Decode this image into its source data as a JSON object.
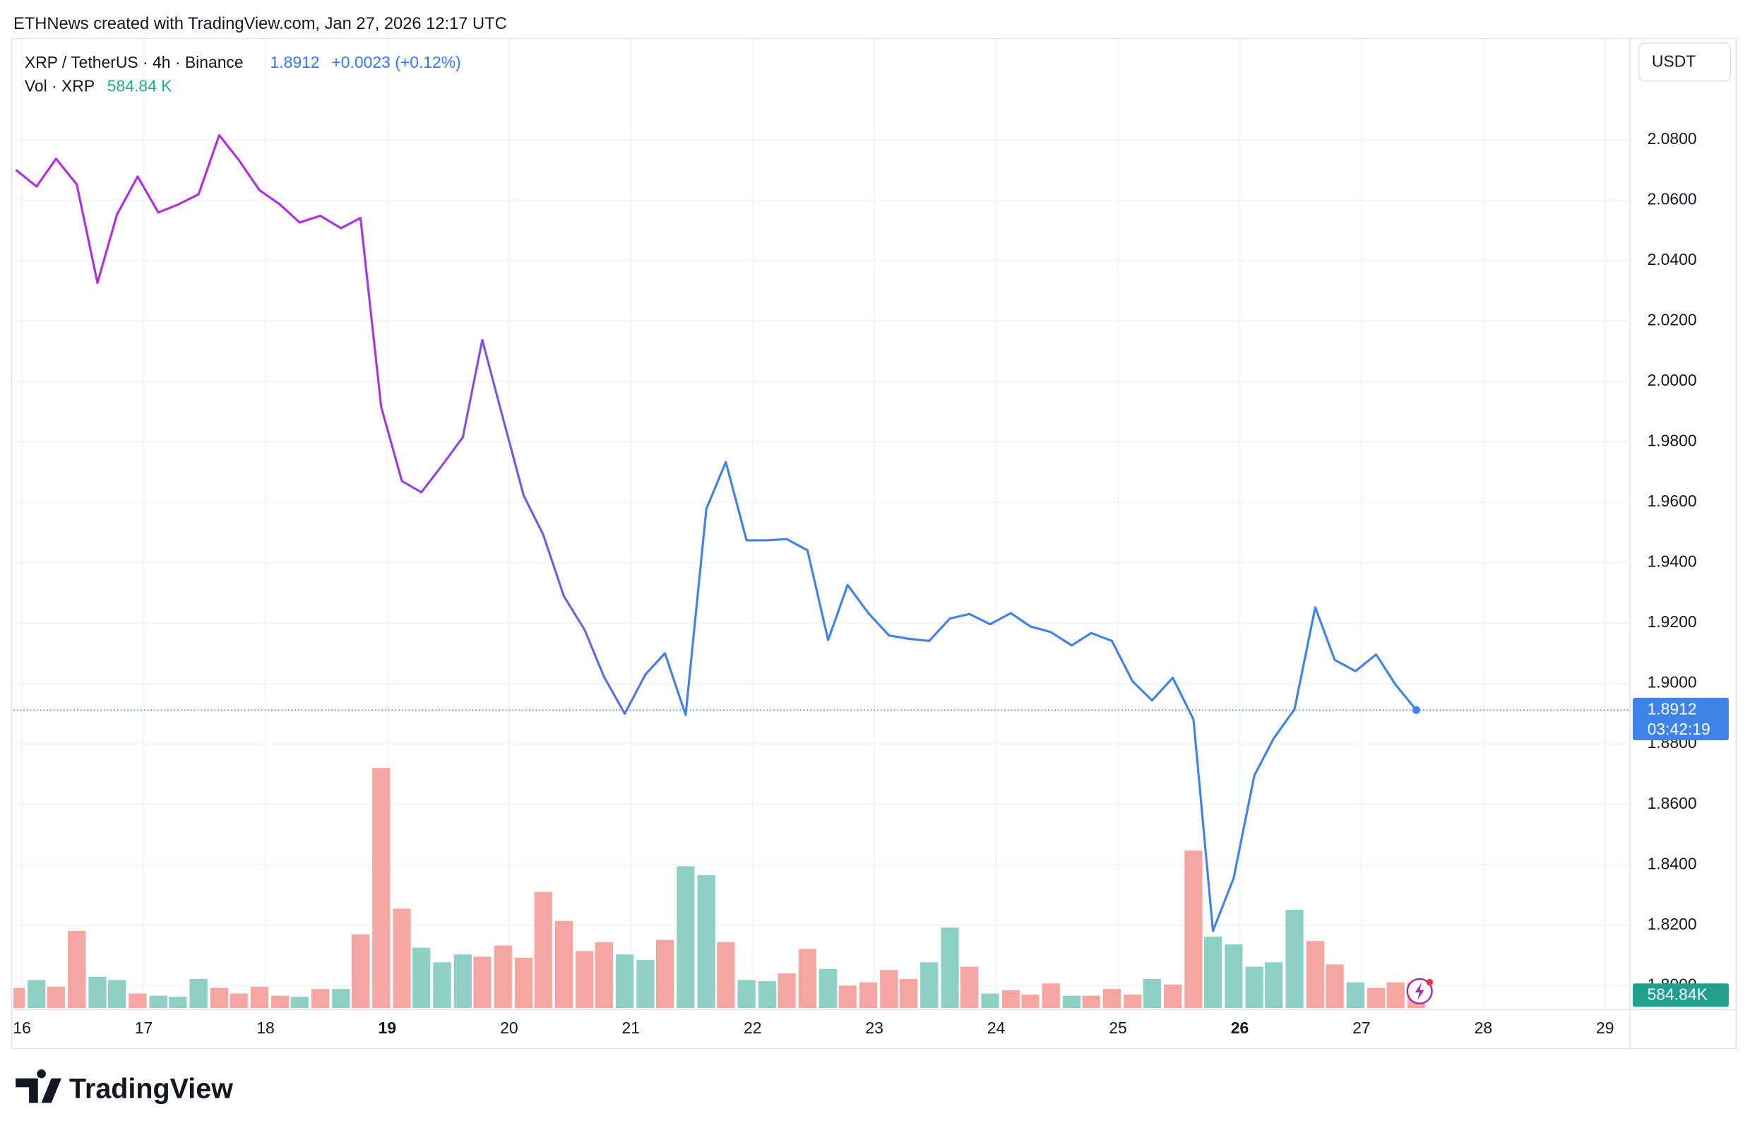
{
  "header": {
    "credit": "ETHNews created with TradingView.com, Jan 27, 2026 12:17 UTC",
    "symbol": "XRP / TetherUS · 4h · Binance",
    "price": "1.8912",
    "change": "+0.0023 (+0.12%)",
    "vol_title": "Vol · XRP",
    "vol_value": "584.84 K",
    "currency_button": "USDT",
    "logo": "TradingView"
  },
  "chart_data": {
    "type": "line",
    "price_tag": "1.8912",
    "countdown": "03:42:19",
    "volume_tag": "584.84K",
    "x": [
      15.95,
      16.12,
      16.28,
      16.45,
      16.62,
      16.78,
      16.95,
      17.12,
      17.28,
      17.45,
      17.62,
      17.78,
      17.95,
      18.12,
      18.28,
      18.45,
      18.62,
      18.78,
      18.95,
      19.12,
      19.28,
      19.45,
      19.62,
      19.78,
      19.95,
      20.12,
      20.28,
      20.45,
      20.62,
      20.78,
      20.95,
      21.12,
      21.28,
      21.45,
      21.62,
      21.78,
      21.95,
      22.12,
      22.28,
      22.45,
      22.62,
      22.78,
      22.95,
      23.12,
      23.28,
      23.45,
      23.62,
      23.78,
      23.95,
      24.12,
      24.28,
      24.45,
      24.62,
      24.78,
      24.95,
      25.12,
      25.28,
      25.45,
      25.62,
      25.78,
      25.95,
      26.12,
      26.28,
      26.45,
      26.62,
      26.78,
      26.95,
      27.12,
      27.28,
      27.45
    ],
    "series": [
      {
        "name": "XRP / TetherUS",
        "color_start": "#b02ee3",
        "color_end": "#3f82e8",
        "values": [
          2.07,
          2.0645,
          2.0737,
          2.0652,
          2.0326,
          2.0552,
          2.0678,
          2.0559,
          2.0585,
          2.0619,
          2.0815,
          2.0733,
          2.0633,
          2.0585,
          2.0526,
          2.0548,
          2.0507,
          2.0541,
          1.9915,
          1.967,
          1.9633,
          1.9722,
          1.9815,
          2.0137,
          1.9878,
          1.9622,
          1.9493,
          1.9289,
          1.9178,
          1.9022,
          1.89,
          1.903,
          1.91,
          1.8896,
          1.9578,
          1.9733,
          1.9474,
          1.9474,
          1.9478,
          1.9441,
          1.9144,
          1.9326,
          1.9233,
          1.9159,
          1.9148,
          1.9141,
          1.9215,
          1.923,
          1.9196,
          1.9233,
          1.9189,
          1.917,
          1.9126,
          1.9167,
          1.9141,
          1.9007,
          1.8944,
          1.9019,
          1.8881,
          1.8181,
          1.8356,
          1.8696,
          1.8819,
          1.8915,
          1.9252,
          1.9078,
          1.9041,
          1.9096,
          1.8996,
          1.8912
        ]
      },
      {
        "name": "Vol · XRP",
        "type": "bar",
        "up_color": "#8fd0c6",
        "down_color": "#f5a6a3",
        "values": [
          457,
          635,
          483,
          1753,
          711,
          635,
          330,
          279,
          254,
          660,
          457,
          330,
          483,
          279,
          254,
          432,
          432,
          1676,
          5461,
          2261,
          1372,
          1041,
          1219,
          1168,
          1422,
          1143,
          2642,
          1981,
          1295,
          1499,
          1219,
          1092,
          1549,
          3226,
          3023,
          1499,
          635,
          610,
          787,
          1346,
          889,
          508,
          584,
          864,
          660,
          1041,
          1829,
          940,
          330,
          406,
          305,
          559,
          279,
          279,
          432,
          305,
          660,
          533,
          3581,
          1626,
          1448,
          940,
          1041,
          2235,
          1524,
          991,
          584,
          457,
          584,
          584.84
        ],
        "up": [
          false,
          true,
          false,
          false,
          true,
          true,
          false,
          true,
          true,
          true,
          false,
          false,
          false,
          false,
          true,
          false,
          true,
          false,
          false,
          false,
          true,
          true,
          true,
          false,
          false,
          false,
          false,
          false,
          false,
          false,
          true,
          true,
          false,
          true,
          true,
          false,
          true,
          true,
          false,
          false,
          true,
          false,
          false,
          false,
          false,
          true,
          true,
          false,
          true,
          false,
          false,
          false,
          true,
          false,
          false,
          false,
          true,
          false,
          false,
          true,
          true,
          true,
          true,
          true,
          false,
          false,
          true,
          false,
          false,
          false
        ]
      }
    ],
    "xlim": [
      15.93,
      29.2
    ],
    "xticks": [
      16,
      17,
      18,
      19,
      20,
      21,
      22,
      23,
      24,
      25,
      26,
      27,
      28,
      29
    ],
    "bold_xticks": [
      19,
      26
    ],
    "ylim": [
      1.7926,
      2.1133
    ],
    "yticks": [
      {
        "value": 1.8,
        "label": "1.8000"
      },
      {
        "value": 1.82,
        "label": "1.8200"
      },
      {
        "value": 1.84,
        "label": "1.8400"
      },
      {
        "value": 1.86,
        "label": "1.8600"
      },
      {
        "value": 1.88,
        "label": "1.8800"
      },
      {
        "value": 1.9,
        "label": "1.9000"
      },
      {
        "value": 1.92,
        "label": "1.9200"
      },
      {
        "value": 1.94,
        "label": "1.9400"
      },
      {
        "value": 1.96,
        "label": "1.9600"
      },
      {
        "value": 1.98,
        "label": "1.9800"
      },
      {
        "value": 2.0,
        "label": "2.0000"
      },
      {
        "value": 2.02,
        "label": "2.0200"
      },
      {
        "value": 2.04,
        "label": "2.0400"
      },
      {
        "value": 2.06,
        "label": "2.0600"
      },
      {
        "value": 2.08,
        "label": "2.0800"
      }
    ],
    "grid": true,
    "price_line_color": "#3f82e8",
    "volume_tag_color": "#22a08f"
  }
}
